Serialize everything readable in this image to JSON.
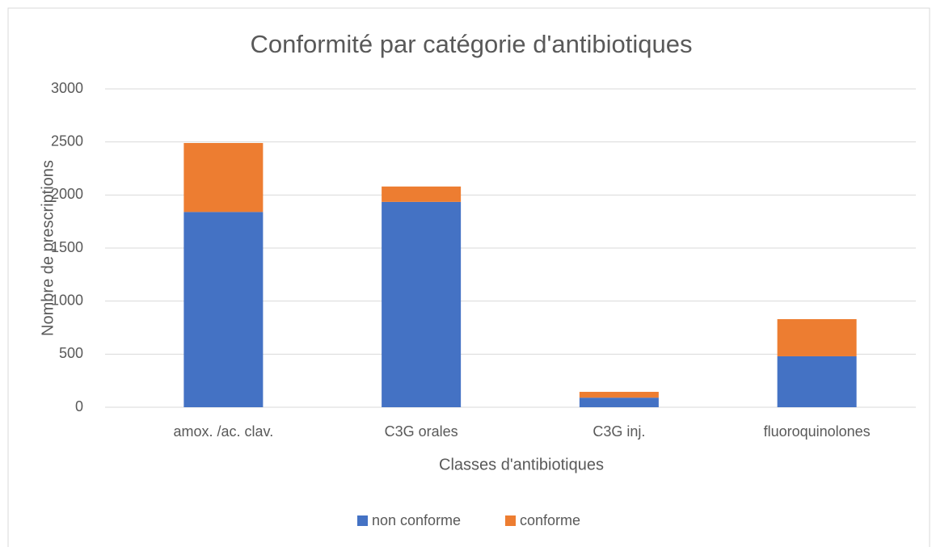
{
  "chart_data": {
    "type": "stacked_bar",
    "title": "Conformité par catégorie d'antibiotiques",
    "x_label": "Classes d'antibiotiques",
    "y_label": "Nombre de prescriptions",
    "categories": [
      "amox. /ac. clav.",
      "C3G orales",
      "C3G inj.",
      "fluoroquinolones"
    ],
    "series": [
      {
        "name": "non conforme",
        "color": "#4472c4",
        "values": [
          1840,
          1935,
          90,
          480
        ]
      },
      {
        "name": "conforme",
        "color": "#ed7d31",
        "values": [
          650,
          145,
          55,
          350
        ]
      }
    ],
    "ylim": [
      0,
      3000
    ],
    "yticks": [
      0,
      500,
      1000,
      1500,
      2000,
      2500,
      3000
    ],
    "grid": true,
    "legend": "bottom"
  }
}
